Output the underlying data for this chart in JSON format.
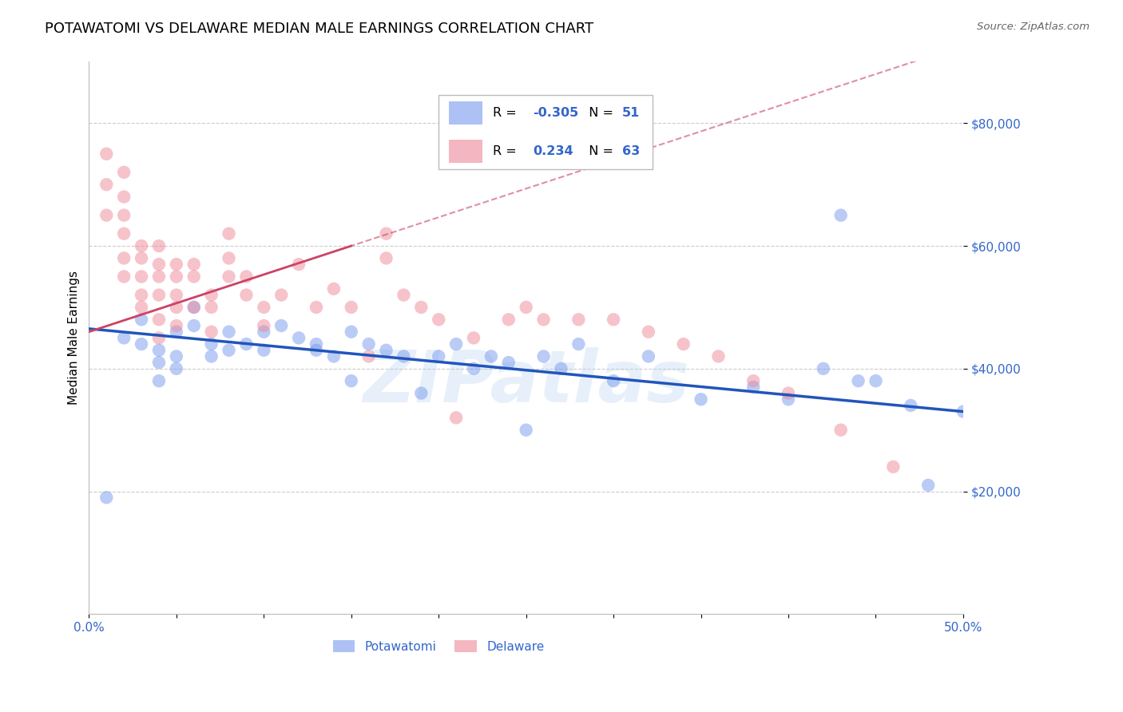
{
  "title": "POTAWATOMI VS DELAWARE MEDIAN MALE EARNINGS CORRELATION CHART",
  "source": "Source: ZipAtlas.com",
  "ylabel": "Median Male Earnings",
  "xlim": [
    0.0,
    0.5
  ],
  "ylim": [
    0,
    90000
  ],
  "yticks": [
    20000,
    40000,
    60000,
    80000
  ],
  "ytick_labels": [
    "$20,000",
    "$40,000",
    "$60,000",
    "$80,000"
  ],
  "xticks": [
    0.0,
    0.05,
    0.1,
    0.15,
    0.2,
    0.25,
    0.3,
    0.35,
    0.4,
    0.45,
    0.5
  ],
  "xtick_labels": [
    "0.0%",
    "",
    "",
    "",
    "",
    "",
    "",
    "",
    "",
    "",
    "50.0%"
  ],
  "grid_color": "#cccccc",
  "background_color": "#ffffff",
  "title_fontsize": 13,
  "axis_label_fontsize": 11,
  "tick_fontsize": 11,
  "blue_color": "#7799ee",
  "pink_color": "#ee8899",
  "blue_line_color": "#2255bb",
  "pink_line_color": "#cc4466",
  "blue_R": -0.305,
  "blue_N": 51,
  "pink_R": 0.234,
  "pink_N": 63,
  "watermark": "ZIPatlas",
  "potawatomi_x": [
    0.01,
    0.02,
    0.03,
    0.03,
    0.04,
    0.04,
    0.04,
    0.05,
    0.05,
    0.05,
    0.06,
    0.06,
    0.07,
    0.07,
    0.08,
    0.08,
    0.09,
    0.1,
    0.1,
    0.11,
    0.12,
    0.13,
    0.13,
    0.14,
    0.15,
    0.15,
    0.16,
    0.17,
    0.18,
    0.19,
    0.2,
    0.21,
    0.22,
    0.23,
    0.24,
    0.25,
    0.26,
    0.27,
    0.28,
    0.3,
    0.32,
    0.35,
    0.38,
    0.4,
    0.42,
    0.43,
    0.44,
    0.45,
    0.47,
    0.48,
    0.5
  ],
  "potawatomi_y": [
    19000,
    45000,
    44000,
    48000,
    43000,
    41000,
    38000,
    46000,
    42000,
    40000,
    50000,
    47000,
    44000,
    42000,
    46000,
    43000,
    44000,
    46000,
    43000,
    47000,
    45000,
    44000,
    43000,
    42000,
    46000,
    38000,
    44000,
    43000,
    42000,
    36000,
    42000,
    44000,
    40000,
    42000,
    41000,
    30000,
    42000,
    40000,
    44000,
    38000,
    42000,
    35000,
    37000,
    35000,
    40000,
    65000,
    38000,
    38000,
    34000,
    21000,
    33000
  ],
  "delaware_x": [
    0.01,
    0.01,
    0.01,
    0.02,
    0.02,
    0.02,
    0.02,
    0.02,
    0.02,
    0.03,
    0.03,
    0.03,
    0.03,
    0.03,
    0.04,
    0.04,
    0.04,
    0.04,
    0.04,
    0.04,
    0.05,
    0.05,
    0.05,
    0.05,
    0.05,
    0.06,
    0.06,
    0.06,
    0.07,
    0.07,
    0.07,
    0.08,
    0.08,
    0.08,
    0.09,
    0.09,
    0.1,
    0.1,
    0.11,
    0.12,
    0.13,
    0.14,
    0.15,
    0.16,
    0.17,
    0.17,
    0.18,
    0.19,
    0.2,
    0.21,
    0.22,
    0.24,
    0.25,
    0.26,
    0.28,
    0.3,
    0.32,
    0.34,
    0.36,
    0.38,
    0.4,
    0.43,
    0.46
  ],
  "delaware_y": [
    75000,
    70000,
    65000,
    72000,
    68000,
    65000,
    62000,
    58000,
    55000,
    60000,
    58000,
    55000,
    52000,
    50000,
    60000,
    57000,
    55000,
    52000,
    48000,
    45000,
    57000,
    55000,
    52000,
    50000,
    47000,
    57000,
    55000,
    50000,
    52000,
    50000,
    46000,
    62000,
    58000,
    55000,
    55000,
    52000,
    50000,
    47000,
    52000,
    57000,
    50000,
    53000,
    50000,
    42000,
    62000,
    58000,
    52000,
    50000,
    48000,
    32000,
    45000,
    48000,
    50000,
    48000,
    48000,
    48000,
    46000,
    44000,
    42000,
    38000,
    36000,
    30000,
    24000
  ]
}
